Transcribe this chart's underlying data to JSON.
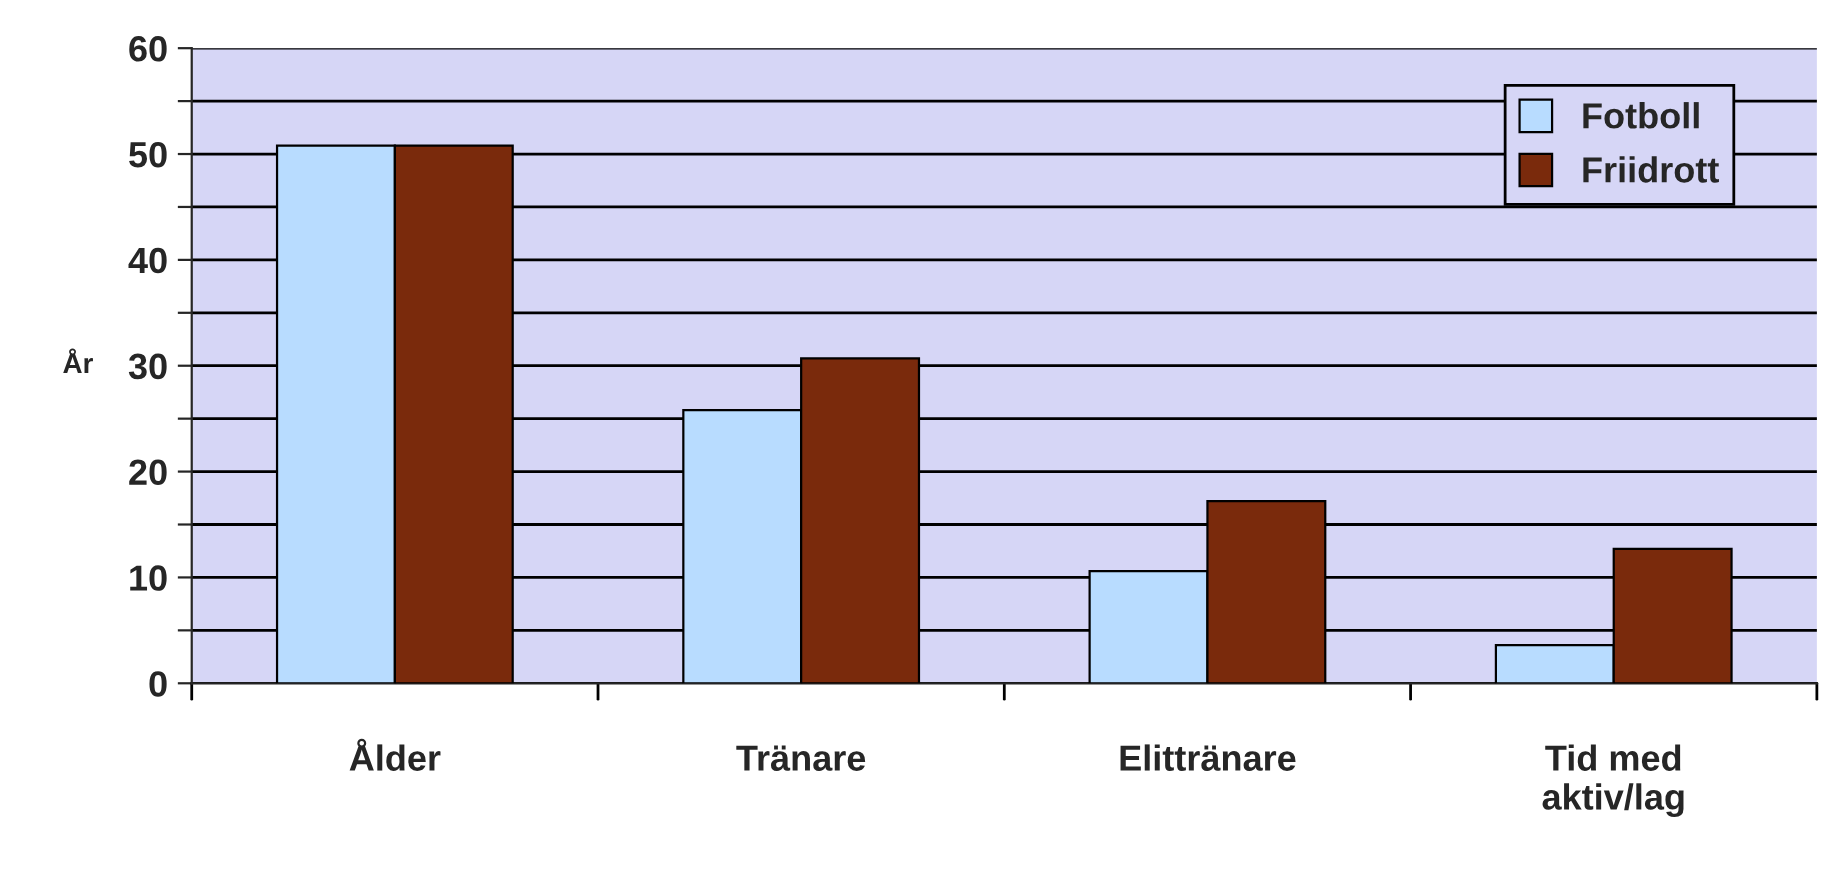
{
  "chart_data": {
    "type": "bar",
    "ylabel": "År",
    "categories": [
      "Ålder",
      "Tränare",
      "Elittränare",
      "Tid med\naktiv/lag"
    ],
    "series": [
      {
        "name": "Fotboll",
        "color": "#b8dcff",
        "values": [
          50.8,
          25.8,
          10.6,
          3.6
        ]
      },
      {
        "name": "Friidrott",
        "color": "#7a2a0c",
        "values": [
          50.8,
          30.7,
          17.2,
          12.7
        ]
      }
    ],
    "ylim": [
      0,
      60
    ],
    "yticks": [
      0,
      {
        "value": 5,
        "label": null
      },
      10,
      {
        "value": 15,
        "label": null
      },
      20,
      {
        "value": 25,
        "label": null
      },
      30,
      {
        "value": 35,
        "label": null
      },
      40,
      {
        "value": 45,
        "label": null
      },
      50,
      {
        "value": 55,
        "label": null
      },
      60
    ],
    "grid": "y",
    "legend": "top right"
  }
}
